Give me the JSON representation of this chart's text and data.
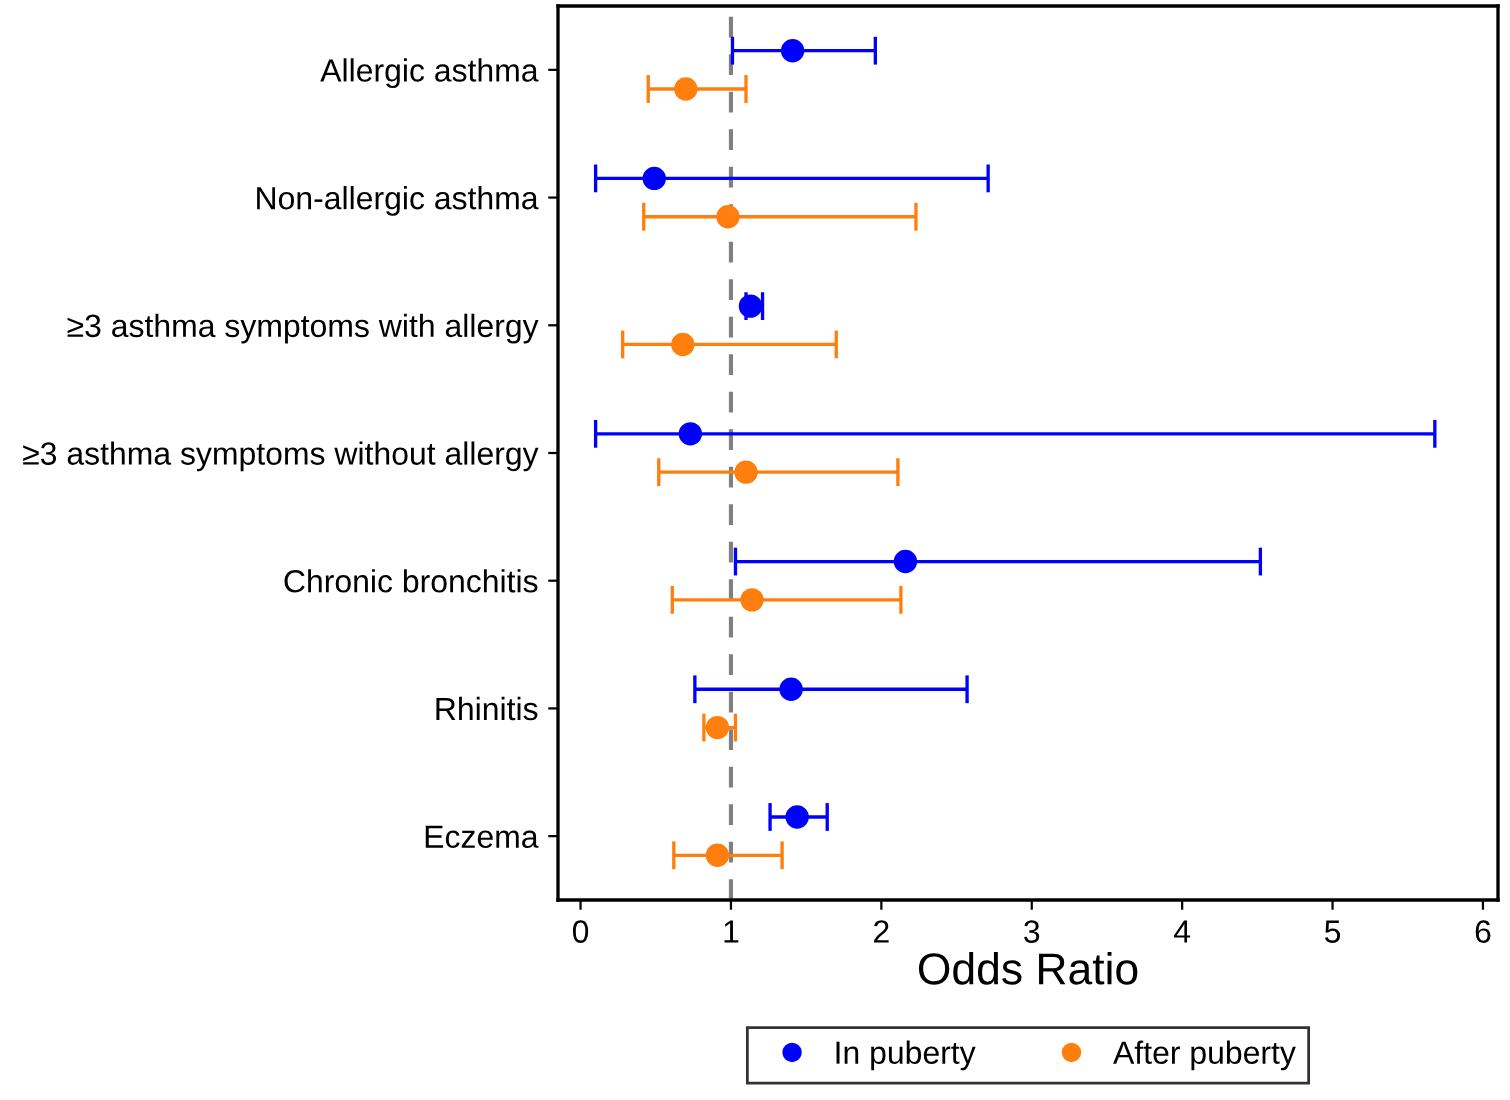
{
  "chart_data": {
    "type": "scatter",
    "orientation": "horizontal",
    "xlabel": "Odds Ratio",
    "categories": [
      "Allergic asthma",
      "Non-allergic asthma",
      "≥3 asthma symptoms with allergy",
      "≥3 asthma symptoms without allergy",
      "Chronic bronchitis",
      "Rhinitis",
      "Eczema"
    ],
    "series": [
      {
        "name": "In puberty",
        "color": "#0000ff",
        "values": [
          1.41,
          0.49,
          1.13,
          0.73,
          2.16,
          1.4,
          1.44
        ],
        "errors": [
          [
            1.01,
            1.96
          ],
          [
            0.1,
            2.71
          ],
          [
            1.1,
            1.21
          ],
          [
            0.1,
            5.68
          ],
          [
            1.03,
            4.52
          ],
          [
            0.76,
            2.57
          ],
          [
            1.26,
            1.64
          ]
        ]
      },
      {
        "name": "After puberty",
        "color": "#ff7f0e",
        "values": [
          0.7,
          0.98,
          0.68,
          1.1,
          1.14,
          0.91,
          0.91
        ],
        "errors": [
          [
            0.45,
            1.1
          ],
          [
            0.42,
            2.23
          ],
          [
            0.28,
            1.7
          ],
          [
            0.52,
            2.11
          ],
          [
            0.61,
            2.13
          ],
          [
            0.82,
            1.03
          ],
          [
            0.62,
            1.34
          ]
        ]
      }
    ],
    "xlim": [
      -0.15,
      6.1
    ],
    "xticks": [
      0,
      1,
      2,
      3,
      4,
      5,
      6
    ],
    "ref_lines": [
      {
        "axis": "x",
        "value": 1,
        "color": "#808080",
        "line_style": "dashed"
      }
    ],
    "marker": "circle",
    "grid": false,
    "legend": "bottom"
  }
}
